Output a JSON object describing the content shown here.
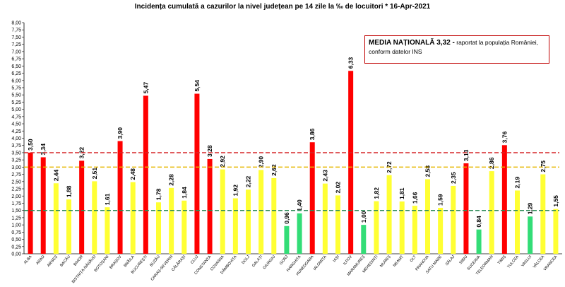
{
  "title": "Incidența cumulată a cazurilor la nivel județean pe 14 zile   la ‰ de locuitori  *   16-Apr-2021",
  "note": {
    "bold": "MEDIA NAȚIONALĂ 3,32 -",
    "text1": " raportat la populația României,",
    "text2": "conform datelor INS"
  },
  "chart_data": {
    "type": "bar",
    "title": "Incidența cumulată a cazurilor la nivel județean pe 14 zile   la ‰ de locuitori  *   16-Apr-2021",
    "categories": [
      "ALBA",
      "ARAD",
      "ARGEȘ",
      "BACĂU",
      "BIHOR",
      "BISTRIȚA-NĂSĂUD",
      "BOTOȘANI",
      "BRAȘOV",
      "BRĂILA",
      "BUCUREȘTI",
      "BUZĂU",
      "CARAȘ-SEVERIN",
      "CĂLĂRAȘI",
      "CLUJ",
      "CONSTANȚA",
      "COVASNA",
      "DÂMBOVIȚA",
      "DOLJ",
      "GALAȚI",
      "GIURGIU",
      "GORJ",
      "HARGHITA",
      "HUNEDOARA",
      "IALOMIȚA",
      "IAȘI",
      "ILFOV",
      "MARAMUREȘ",
      "MEHEDINȚI",
      "MUREȘ",
      "NEAMȚ",
      "OLT",
      "PRAHOVA",
      "SATU MARE",
      "SĂLAJ",
      "SIBIU",
      "SUCEAVA",
      "TELEORMAN",
      "TIMIȘ",
      "TULCEA",
      "VASLUI",
      "VÂLCEA",
      "VRANCEA"
    ],
    "values": [
      3.5,
      3.34,
      2.44,
      1.88,
      3.22,
      2.51,
      1.61,
      3.9,
      2.48,
      5.47,
      1.78,
      2.28,
      1.84,
      5.54,
      3.28,
      2.92,
      1.92,
      2.22,
      2.9,
      2.62,
      0.96,
      1.4,
      3.86,
      2.43,
      2.02,
      6.33,
      1.0,
      1.82,
      2.72,
      1.81,
      1.66,
      2.58,
      1.59,
      2.35,
      3.13,
      0.84,
      2.86,
      3.76,
      2.19,
      1.29,
      2.75,
      1.55
    ],
    "value_labels": [
      "3,50",
      "3,34",
      "2,44",
      "1,88",
      "3,22",
      "2,51",
      "1,61",
      "3,90",
      "2,48",
      "5,47",
      "1,78",
      "2,28",
      "1,84",
      "5,54",
      "3,28",
      "2,92",
      "1,92",
      "2,22",
      "2,90",
      "2,62",
      "0,96",
      "1,40",
      "3,86",
      "2,43",
      "2,02",
      "6,33",
      "1,00",
      "1,82",
      "2,72",
      "1,81",
      "1,66",
      "2,58",
      "1,59",
      "2,35",
      "3,13",
      "0,84",
      "2,86",
      "3,76",
      "2,19",
      "1,29",
      "2,75",
      "1,55"
    ],
    "ylim": [
      0,
      8
    ],
    "yticks": [
      "0,00",
      "0,25",
      "0,50",
      "0,75",
      "1,00",
      "1,25",
      "1,50",
      "1,75",
      "2,00",
      "2,25",
      "2,50",
      "2,75",
      "3,00",
      "3,25",
      "3,50",
      "3,75",
      "4,00",
      "4,25",
      "4,50",
      "4,75",
      "5,00",
      "5,25",
      "5,50",
      "5,75",
      "6,00",
      "6,25",
      "6,50",
      "6,75",
      "7,00",
      "7,25",
      "7,50",
      "7,75",
      "8,00"
    ],
    "thresholds": [
      {
        "value": 3.5,
        "color": "#d62728",
        "style": "dashed"
      },
      {
        "value": 3.0,
        "color": "#e6b800",
        "style": "dashed"
      },
      {
        "value": 1.5,
        "color": "#2e8b57",
        "style": "dashed"
      }
    ],
    "color_rules": {
      "above_3": "#ff0000",
      "between_1_5_and_3": "#ffff33",
      "below_1_5": "#33dd77"
    },
    "grid": false
  }
}
